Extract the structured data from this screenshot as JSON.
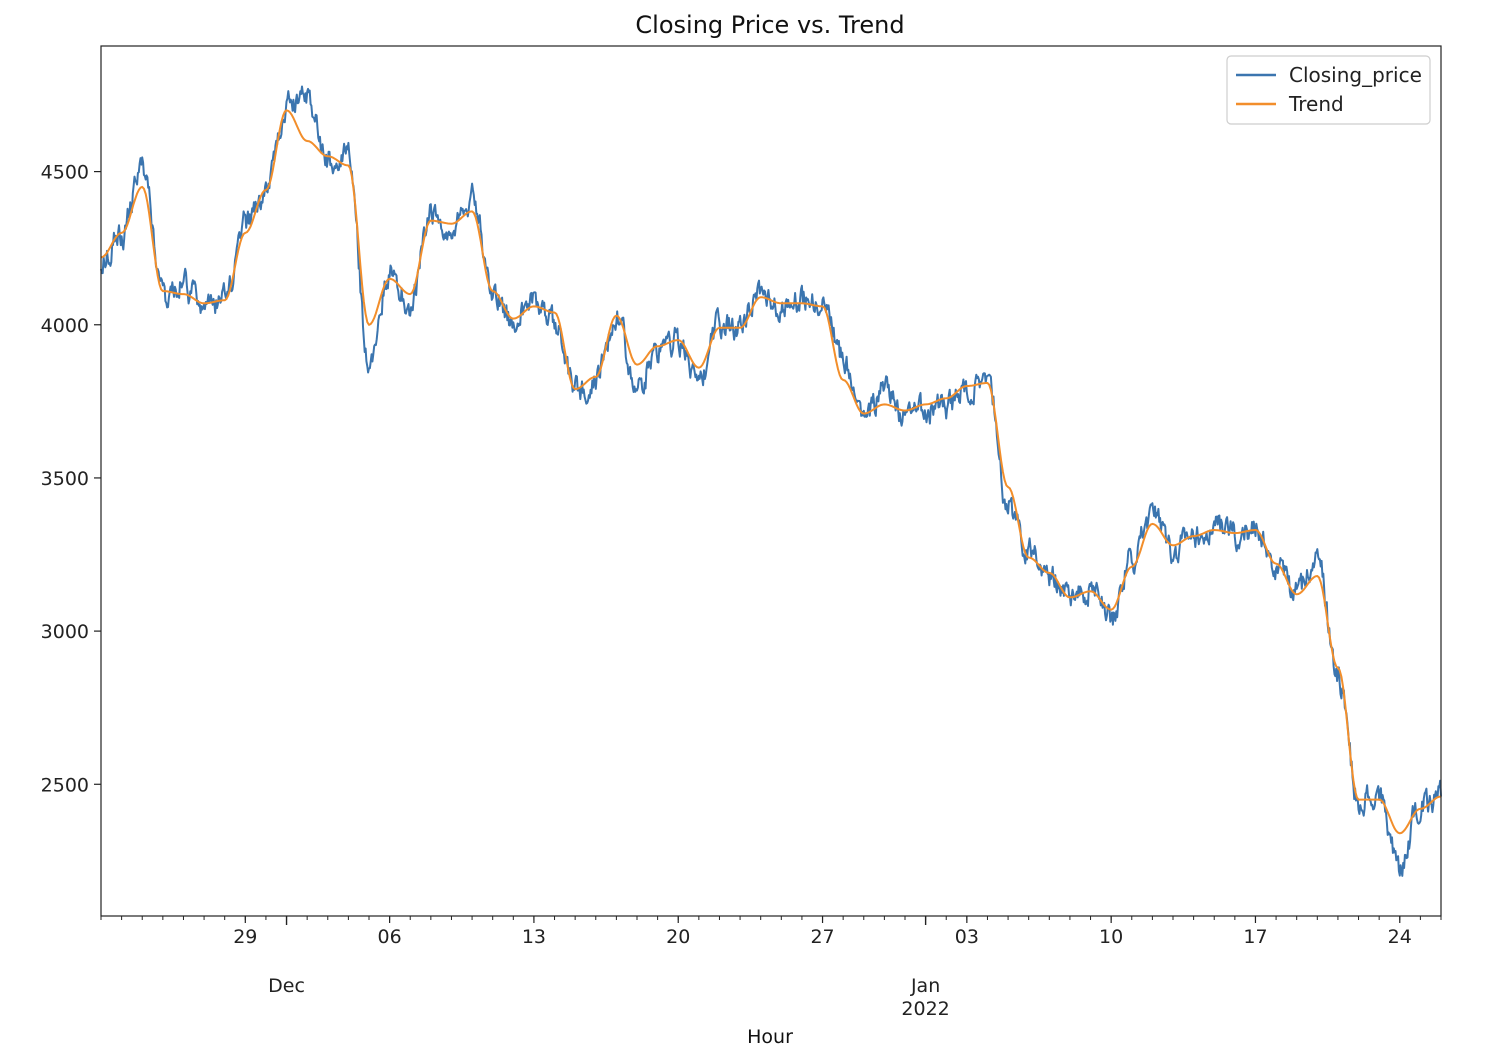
{
  "chart_data": {
    "type": "line",
    "title": "Closing Price vs. Trend",
    "xlabel": "Hour",
    "ylabel": "",
    "x_range": [
      "2021-11-22T00:00",
      "2022-01-26T00:00"
    ],
    "ylim": [
      2070,
      4910
    ],
    "y_ticks": [
      2500,
      3000,
      3500,
      4000,
      4500
    ],
    "x_ticks": [
      {
        "date": "2021-11-29",
        "label": "29"
      },
      {
        "date": "2021-12-06",
        "label": "06"
      },
      {
        "date": "2021-12-13",
        "label": "13"
      },
      {
        "date": "2021-12-20",
        "label": "20"
      },
      {
        "date": "2021-12-27",
        "label": "27"
      },
      {
        "date": "2022-01-03",
        "label": "03"
      },
      {
        "date": "2022-01-10",
        "label": "10"
      },
      {
        "date": "2022-01-17",
        "label": "17"
      },
      {
        "date": "2022-01-24",
        "label": "24"
      }
    ],
    "x_major_labels": [
      {
        "date": "2021-12-01",
        "label": "Dec"
      },
      {
        "date": "2022-01-01",
        "label": "Jan",
        "sublabel": "2022"
      }
    ],
    "legend": {
      "position": "top-right"
    },
    "series": [
      {
        "name": "Closing_price",
        "color": "#3b75af",
        "x": [
          "2021-11-22",
          "2021-11-23",
          "2021-11-24",
          "2021-11-25",
          "2021-11-26",
          "2021-11-27",
          "2021-11-28",
          "2021-11-29",
          "2021-11-30",
          "2021-12-01",
          "2021-12-02",
          "2021-12-03",
          "2021-12-04",
          "2021-12-05",
          "2021-12-06",
          "2021-12-07",
          "2021-12-08",
          "2021-12-09",
          "2021-12-10",
          "2021-12-11",
          "2021-12-12",
          "2021-12-13",
          "2021-12-14",
          "2021-12-15",
          "2021-12-16",
          "2021-12-17",
          "2021-12-18",
          "2021-12-19",
          "2021-12-20",
          "2021-12-21",
          "2021-12-22",
          "2021-12-23",
          "2021-12-24",
          "2021-12-25",
          "2021-12-26",
          "2021-12-27",
          "2021-12-28",
          "2021-12-29",
          "2021-12-30",
          "2021-12-31",
          "2022-01-01",
          "2022-01-02",
          "2022-01-03",
          "2022-01-04",
          "2022-01-05",
          "2022-01-06",
          "2022-01-07",
          "2022-01-08",
          "2022-01-09",
          "2022-01-10",
          "2022-01-11",
          "2022-01-12",
          "2022-01-13",
          "2022-01-14",
          "2022-01-15",
          "2022-01-16",
          "2022-01-17",
          "2022-01-18",
          "2022-01-19",
          "2022-01-20",
          "2022-01-21",
          "2022-01-22",
          "2022-01-23",
          "2022-01-24",
          "2022-01-25",
          "2022-01-26"
        ],
        "values": [
          4210,
          4300,
          4510,
          4090,
          4130,
          4060,
          4080,
          4330,
          4430,
          4720,
          4740,
          4540,
          4570,
          3880,
          4180,
          4060,
          4380,
          4300,
          4410,
          4110,
          4010,
          4080,
          4010,
          3780,
          3810,
          4040,
          3790,
          3920,
          3950,
          3810,
          4000,
          3990,
          4120,
          4050,
          4080,
          4070,
          3900,
          3700,
          3780,
          3700,
          3720,
          3730,
          3800,
          3840,
          3400,
          3250,
          3180,
          3100,
          3140,
          3040,
          3230,
          3380,
          3260,
          3300,
          3350,
          3320,
          3340,
          3210,
          3120,
          3230,
          2850,
          2450,
          2470,
          2220,
          2440,
          2460
        ]
      },
      {
        "name": "Trend",
        "color": "#f28e2b",
        "x": [
          "2021-11-22",
          "2021-11-23",
          "2021-11-24",
          "2021-11-25",
          "2021-11-26",
          "2021-11-27",
          "2021-11-28",
          "2021-11-29",
          "2021-11-30",
          "2021-12-01",
          "2021-12-02",
          "2021-12-03",
          "2021-12-04",
          "2021-12-05",
          "2021-12-06",
          "2021-12-07",
          "2021-12-08",
          "2021-12-09",
          "2021-12-10",
          "2021-12-11",
          "2021-12-12",
          "2021-12-13",
          "2021-12-14",
          "2021-12-15",
          "2021-12-16",
          "2021-12-17",
          "2021-12-18",
          "2021-12-19",
          "2021-12-20",
          "2021-12-21",
          "2021-12-22",
          "2021-12-23",
          "2021-12-24",
          "2021-12-25",
          "2021-12-26",
          "2021-12-27",
          "2021-12-28",
          "2021-12-29",
          "2021-12-30",
          "2021-12-31",
          "2022-01-01",
          "2022-01-02",
          "2022-01-03",
          "2022-01-04",
          "2022-01-05",
          "2022-01-06",
          "2022-01-07",
          "2022-01-08",
          "2022-01-09",
          "2022-01-10",
          "2022-01-11",
          "2022-01-12",
          "2022-01-13",
          "2022-01-14",
          "2022-01-15",
          "2022-01-16",
          "2022-01-17",
          "2022-01-18",
          "2022-01-19",
          "2022-01-20",
          "2022-01-21",
          "2022-01-22",
          "2022-01-23",
          "2022-01-24",
          "2022-01-25",
          "2022-01-26"
        ],
        "values": [
          4220,
          4300,
          4450,
          4110,
          4100,
          4070,
          4080,
          4300,
          4440,
          4700,
          4600,
          4550,
          4520,
          4000,
          4150,
          4100,
          4340,
          4330,
          4370,
          4110,
          4020,
          4060,
          4040,
          3790,
          3830,
          4030,
          3870,
          3930,
          3950,
          3860,
          3990,
          3990,
          4090,
          4070,
          4070,
          4060,
          3820,
          3710,
          3740,
          3720,
          3740,
          3760,
          3800,
          3810,
          3470,
          3240,
          3190,
          3110,
          3130,
          3070,
          3210,
          3350,
          3280,
          3310,
          3330,
          3320,
          3330,
          3220,
          3120,
          3180,
          2880,
          2450,
          2450,
          2340,
          2420,
          2460
        ]
      }
    ]
  }
}
